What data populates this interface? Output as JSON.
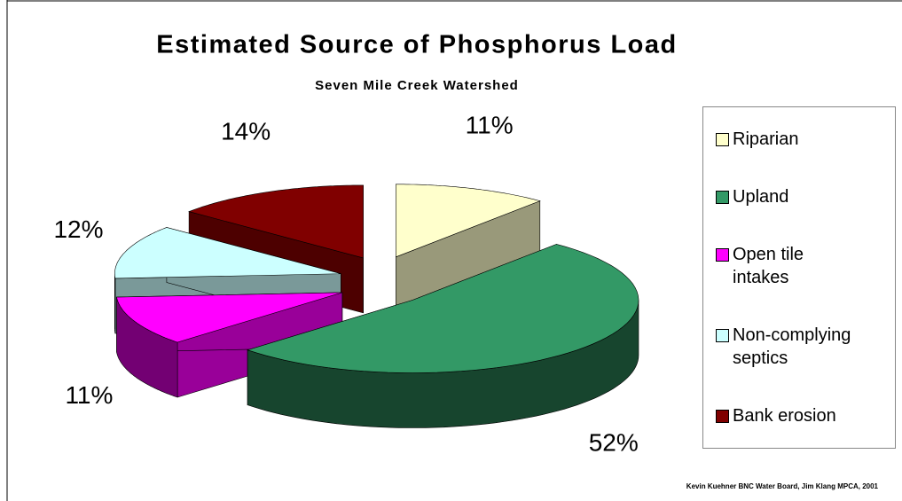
{
  "chart_data": {
    "type": "pie3d",
    "title": "Estimated Source of Phosphorus Load",
    "subtitle": "Seven Mile Creek Watershed",
    "note": "Kevin Kuehner BNC Water Board, Jim Klang MPCA, 2001",
    "categories": [
      "Riparian",
      "Upland",
      "Open tile intakes",
      "Non-complying septics",
      "Bank erosion"
    ],
    "values": [
      11,
      52,
      11,
      12,
      14
    ],
    "value_labels": [
      "11%",
      "52%",
      "11%",
      "12%",
      "14%"
    ],
    "colors": [
      "#ffffcc",
      "#339966",
      "#ff00ff",
      "#ccffff",
      "#800000"
    ],
    "legend": "right"
  }
}
